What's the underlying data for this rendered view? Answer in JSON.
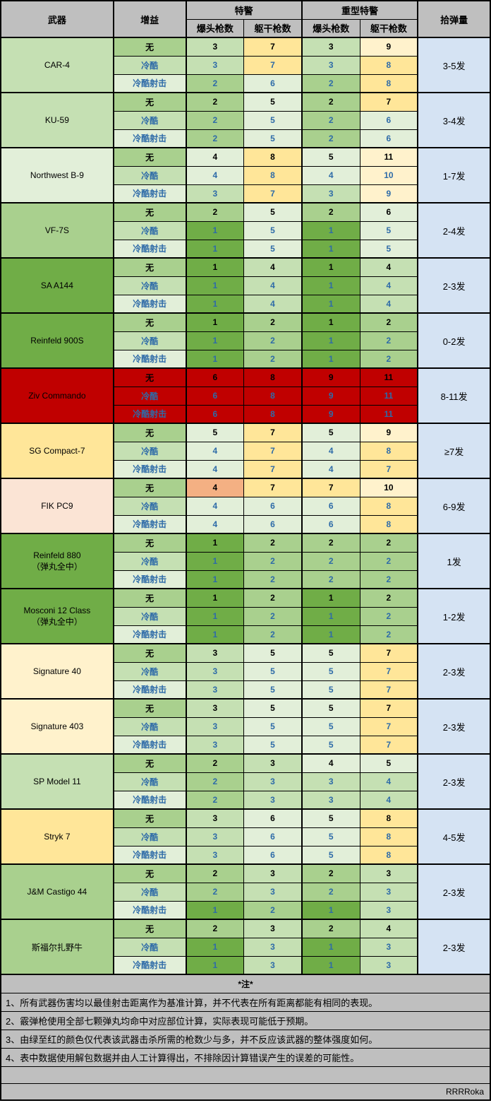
{
  "headers": {
    "weapon": "武器",
    "buff": "增益",
    "swat": "特警",
    "heavy_swat": "重型特警",
    "headshots": "爆头枪数",
    "bodyshots": "躯干枪数",
    "ammo": "拾弹量"
  },
  "buffs": {
    "none": "无",
    "cold": "冷酷",
    "coldshot": "冷酷射击"
  },
  "color_map": {
    "g1": "#70ad47",
    "g2": "#a9d08e",
    "g3": "#c5e0b3",
    "g4": "#e2efd9",
    "y1": "#ffe699",
    "y2": "#fff2cc",
    "o1": "#f4b083",
    "o2": "#fbe4d5",
    "r1": "#c00000"
  },
  "weapons": [
    {
      "name": "CAR-4",
      "ammo": "3-5发",
      "weapon_bg": "g3",
      "rows": [
        {
          "buff": "none",
          "buff_bg": "g2",
          "swat_h": "3",
          "swat_h_bg": "g3",
          "swat_b": "7",
          "swat_b_bg": "y1",
          "heavy_h": "3",
          "heavy_h_bg": "g3",
          "heavy_b": "9",
          "heavy_b_bg": "y2"
        },
        {
          "buff": "cold",
          "buff_bg": "g3",
          "swat_h": "3",
          "swat_h_bg": "g3",
          "swat_b": "7",
          "swat_b_bg": "y1",
          "heavy_h": "3",
          "heavy_h_bg": "g3",
          "heavy_b": "8",
          "heavy_b_bg": "y1"
        },
        {
          "buff": "coldshot",
          "buff_bg": "g4",
          "swat_h": "2",
          "swat_h_bg": "g2",
          "swat_b": "6",
          "swat_b_bg": "g4",
          "heavy_h": "2",
          "heavy_h_bg": "g2",
          "heavy_b": "8",
          "heavy_b_bg": "y1"
        }
      ]
    },
    {
      "name": "KU-59",
      "ammo": "3-4发",
      "weapon_bg": "g3",
      "rows": [
        {
          "buff": "none",
          "buff_bg": "g2",
          "swat_h": "2",
          "swat_h_bg": "g2",
          "swat_b": "5",
          "swat_b_bg": "g4",
          "heavy_h": "2",
          "heavy_h_bg": "g2",
          "heavy_b": "7",
          "heavy_b_bg": "y1"
        },
        {
          "buff": "cold",
          "buff_bg": "g3",
          "swat_h": "2",
          "swat_h_bg": "g2",
          "swat_b": "5",
          "swat_b_bg": "g4",
          "heavy_h": "2",
          "heavy_h_bg": "g2",
          "heavy_b": "6",
          "heavy_b_bg": "g4"
        },
        {
          "buff": "coldshot",
          "buff_bg": "g4",
          "swat_h": "2",
          "swat_h_bg": "g2",
          "swat_b": "5",
          "swat_b_bg": "g4",
          "heavy_h": "2",
          "heavy_h_bg": "g2",
          "heavy_b": "6",
          "heavy_b_bg": "g4"
        }
      ]
    },
    {
      "name": "Northwest B-9",
      "ammo": "1-7发",
      "weapon_bg": "g4",
      "rows": [
        {
          "buff": "none",
          "buff_bg": "g2",
          "swat_h": "4",
          "swat_h_bg": "g4",
          "swat_b": "8",
          "swat_b_bg": "y1",
          "heavy_h": "5",
          "heavy_h_bg": "g4",
          "heavy_b": "11",
          "heavy_b_bg": "y2"
        },
        {
          "buff": "cold",
          "buff_bg": "g3",
          "swat_h": "4",
          "swat_h_bg": "g4",
          "swat_b": "8",
          "swat_b_bg": "y1",
          "heavy_h": "4",
          "heavy_h_bg": "g4",
          "heavy_b": "10",
          "heavy_b_bg": "y2"
        },
        {
          "buff": "coldshot",
          "buff_bg": "g4",
          "swat_h": "3",
          "swat_h_bg": "g3",
          "swat_b": "7",
          "swat_b_bg": "y1",
          "heavy_h": "3",
          "heavy_h_bg": "g3",
          "heavy_b": "9",
          "heavy_b_bg": "y2"
        }
      ]
    },
    {
      "name": "VF-7S",
      "ammo": "2-4发",
      "weapon_bg": "g2",
      "rows": [
        {
          "buff": "none",
          "buff_bg": "g2",
          "swat_h": "2",
          "swat_h_bg": "g2",
          "swat_b": "5",
          "swat_b_bg": "g4",
          "heavy_h": "2",
          "heavy_h_bg": "g2",
          "heavy_b": "6",
          "heavy_b_bg": "g4"
        },
        {
          "buff": "cold",
          "buff_bg": "g3",
          "swat_h": "1",
          "swat_h_bg": "g1",
          "swat_b": "5",
          "swat_b_bg": "g4",
          "heavy_h": "1",
          "heavy_h_bg": "g1",
          "heavy_b": "5",
          "heavy_b_bg": "g4"
        },
        {
          "buff": "coldshot",
          "buff_bg": "g4",
          "swat_h": "1",
          "swat_h_bg": "g1",
          "swat_b": "5",
          "swat_b_bg": "g4",
          "heavy_h": "1",
          "heavy_h_bg": "g1",
          "heavy_b": "5",
          "heavy_b_bg": "g4"
        }
      ]
    },
    {
      "name": "SA A144",
      "ammo": "2-3发",
      "weapon_bg": "g1",
      "rows": [
        {
          "buff": "none",
          "buff_bg": "g2",
          "swat_h": "1",
          "swat_h_bg": "g1",
          "swat_b": "4",
          "swat_b_bg": "g3",
          "heavy_h": "1",
          "heavy_h_bg": "g1",
          "heavy_b": "4",
          "heavy_b_bg": "g3"
        },
        {
          "buff": "cold",
          "buff_bg": "g3",
          "swat_h": "1",
          "swat_h_bg": "g1",
          "swat_b": "4",
          "swat_b_bg": "g3",
          "heavy_h": "1",
          "heavy_h_bg": "g1",
          "heavy_b": "4",
          "heavy_b_bg": "g3"
        },
        {
          "buff": "coldshot",
          "buff_bg": "g4",
          "swat_h": "1",
          "swat_h_bg": "g1",
          "swat_b": "4",
          "swat_b_bg": "g3",
          "heavy_h": "1",
          "heavy_h_bg": "g1",
          "heavy_b": "4",
          "heavy_b_bg": "g3"
        }
      ]
    },
    {
      "name": "Reinfeld 900S",
      "ammo": "0-2发",
      "weapon_bg": "g1",
      "rows": [
        {
          "buff": "none",
          "buff_bg": "g2",
          "swat_h": "1",
          "swat_h_bg": "g1",
          "swat_b": "2",
          "swat_b_bg": "g2",
          "heavy_h": "1",
          "heavy_h_bg": "g1",
          "heavy_b": "2",
          "heavy_b_bg": "g2"
        },
        {
          "buff": "cold",
          "buff_bg": "g3",
          "swat_h": "1",
          "swat_h_bg": "g1",
          "swat_b": "2",
          "swat_b_bg": "g2",
          "heavy_h": "1",
          "heavy_h_bg": "g1",
          "heavy_b": "2",
          "heavy_b_bg": "g2"
        },
        {
          "buff": "coldshot",
          "buff_bg": "g4",
          "swat_h": "1",
          "swat_h_bg": "g1",
          "swat_b": "2",
          "swat_b_bg": "g2",
          "heavy_h": "1",
          "heavy_h_bg": "g1",
          "heavy_b": "2",
          "heavy_b_bg": "g2"
        }
      ]
    },
    {
      "name": "Ziv Commando",
      "ammo": "8-11发",
      "weapon_bg": "r1",
      "rows": [
        {
          "buff": "none",
          "buff_bg": "r1",
          "swat_h": "6",
          "swat_h_bg": "r1",
          "swat_b": "8",
          "swat_b_bg": "r1",
          "heavy_h": "9",
          "heavy_h_bg": "r1",
          "heavy_b": "11",
          "heavy_b_bg": "r1"
        },
        {
          "buff": "cold",
          "buff_bg": "r1",
          "swat_h": "6",
          "swat_h_bg": "r1",
          "swat_b": "8",
          "swat_b_bg": "r1",
          "heavy_h": "9",
          "heavy_h_bg": "r1",
          "heavy_b": "11",
          "heavy_b_bg": "r1"
        },
        {
          "buff": "coldshot",
          "buff_bg": "r1",
          "swat_h": "6",
          "swat_h_bg": "r1",
          "swat_b": "8",
          "swat_b_bg": "r1",
          "heavy_h": "9",
          "heavy_h_bg": "r1",
          "heavy_b": "11",
          "heavy_b_bg": "r1"
        }
      ]
    },
    {
      "name": "SG Compact-7",
      "ammo": "≥7发",
      "weapon_bg": "y1",
      "rows": [
        {
          "buff": "none",
          "buff_bg": "g2",
          "swat_h": "5",
          "swat_h_bg": "g4",
          "swat_b": "7",
          "swat_b_bg": "y1",
          "heavy_h": "5",
          "heavy_h_bg": "g4",
          "heavy_b": "9",
          "heavy_b_bg": "y2"
        },
        {
          "buff": "cold",
          "buff_bg": "g3",
          "swat_h": "4",
          "swat_h_bg": "g4",
          "swat_b": "7",
          "swat_b_bg": "y1",
          "heavy_h": "4",
          "heavy_h_bg": "g4",
          "heavy_b": "8",
          "heavy_b_bg": "y1"
        },
        {
          "buff": "coldshot",
          "buff_bg": "g4",
          "swat_h": "4",
          "swat_h_bg": "g4",
          "swat_b": "7",
          "swat_b_bg": "y1",
          "heavy_h": "4",
          "heavy_h_bg": "g4",
          "heavy_b": "7",
          "heavy_b_bg": "y1"
        }
      ]
    },
    {
      "name": "FIK PC9",
      "ammo": "6-9发",
      "weapon_bg": "o2",
      "rows": [
        {
          "buff": "none",
          "buff_bg": "g2",
          "swat_h": "4",
          "swat_h_bg": "o1",
          "swat_b": "7",
          "swat_b_bg": "y1",
          "heavy_h": "7",
          "heavy_h_bg": "y1",
          "heavy_b": "10",
          "heavy_b_bg": "y2"
        },
        {
          "buff": "cold",
          "buff_bg": "g3",
          "swat_h": "4",
          "swat_h_bg": "g4",
          "swat_b": "6",
          "swat_b_bg": "g4",
          "heavy_h": "6",
          "heavy_h_bg": "g4",
          "heavy_b": "8",
          "heavy_b_bg": "y1"
        },
        {
          "buff": "coldshot",
          "buff_bg": "g4",
          "swat_h": "4",
          "swat_h_bg": "g4",
          "swat_b": "6",
          "swat_b_bg": "g4",
          "heavy_h": "6",
          "heavy_h_bg": "g4",
          "heavy_b": "8",
          "heavy_b_bg": "y1"
        }
      ]
    },
    {
      "name": "Reinfeld 880\n（弹丸全中）",
      "ammo": "1发",
      "weapon_bg": "g1",
      "rows": [
        {
          "buff": "none",
          "buff_bg": "g2",
          "swat_h": "1",
          "swat_h_bg": "g1",
          "swat_b": "2",
          "swat_b_bg": "g2",
          "heavy_h": "2",
          "heavy_h_bg": "g2",
          "heavy_b": "2",
          "heavy_b_bg": "g2"
        },
        {
          "buff": "cold",
          "buff_bg": "g3",
          "swat_h": "1",
          "swat_h_bg": "g1",
          "swat_b": "2",
          "swat_b_bg": "g2",
          "heavy_h": "2",
          "heavy_h_bg": "g2",
          "heavy_b": "2",
          "heavy_b_bg": "g2"
        },
        {
          "buff": "coldshot",
          "buff_bg": "g4",
          "swat_h": "1",
          "swat_h_bg": "g1",
          "swat_b": "2",
          "swat_b_bg": "g2",
          "heavy_h": "2",
          "heavy_h_bg": "g2",
          "heavy_b": "2",
          "heavy_b_bg": "g2"
        }
      ]
    },
    {
      "name": "Mosconi 12 Class\n（弹丸全中）",
      "ammo": "1-2发",
      "weapon_bg": "g1",
      "rows": [
        {
          "buff": "none",
          "buff_bg": "g2",
          "swat_h": "1",
          "swat_h_bg": "g1",
          "swat_b": "2",
          "swat_b_bg": "g2",
          "heavy_h": "1",
          "heavy_h_bg": "g1",
          "heavy_b": "2",
          "heavy_b_bg": "g2"
        },
        {
          "buff": "cold",
          "buff_bg": "g3",
          "swat_h": "1",
          "swat_h_bg": "g1",
          "swat_b": "2",
          "swat_b_bg": "g2",
          "heavy_h": "1",
          "heavy_h_bg": "g1",
          "heavy_b": "2",
          "heavy_b_bg": "g2"
        },
        {
          "buff": "coldshot",
          "buff_bg": "g4",
          "swat_h": "1",
          "swat_h_bg": "g1",
          "swat_b": "2",
          "swat_b_bg": "g2",
          "heavy_h": "1",
          "heavy_h_bg": "g1",
          "heavy_b": "2",
          "heavy_b_bg": "g2"
        }
      ]
    },
    {
      "name": "Signature 40",
      "ammo": "2-3发",
      "weapon_bg": "y2",
      "rows": [
        {
          "buff": "none",
          "buff_bg": "g2",
          "swat_h": "3",
          "swat_h_bg": "g3",
          "swat_b": "5",
          "swat_b_bg": "g4",
          "heavy_h": "5",
          "heavy_h_bg": "g4",
          "heavy_b": "7",
          "heavy_b_bg": "y1"
        },
        {
          "buff": "cold",
          "buff_bg": "g3",
          "swat_h": "3",
          "swat_h_bg": "g3",
          "swat_b": "5",
          "swat_b_bg": "g4",
          "heavy_h": "5",
          "heavy_h_bg": "g4",
          "heavy_b": "7",
          "heavy_b_bg": "y1"
        },
        {
          "buff": "coldshot",
          "buff_bg": "g4",
          "swat_h": "3",
          "swat_h_bg": "g3",
          "swat_b": "5",
          "swat_b_bg": "g4",
          "heavy_h": "5",
          "heavy_h_bg": "g4",
          "heavy_b": "7",
          "heavy_b_bg": "y1"
        }
      ]
    },
    {
      "name": "Signature 403",
      "ammo": "2-3发",
      "weapon_bg": "y2",
      "rows": [
        {
          "buff": "none",
          "buff_bg": "g2",
          "swat_h": "3",
          "swat_h_bg": "g3",
          "swat_b": "5",
          "swat_b_bg": "g4",
          "heavy_h": "5",
          "heavy_h_bg": "g4",
          "heavy_b": "7",
          "heavy_b_bg": "y1"
        },
        {
          "buff": "cold",
          "buff_bg": "g3",
          "swat_h": "3",
          "swat_h_bg": "g3",
          "swat_b": "5",
          "swat_b_bg": "g4",
          "heavy_h": "5",
          "heavy_h_bg": "g4",
          "heavy_b": "7",
          "heavy_b_bg": "y1"
        },
        {
          "buff": "coldshot",
          "buff_bg": "g4",
          "swat_h": "3",
          "swat_h_bg": "g3",
          "swat_b": "5",
          "swat_b_bg": "g4",
          "heavy_h": "5",
          "heavy_h_bg": "g4",
          "heavy_b": "7",
          "heavy_b_bg": "y1"
        }
      ]
    },
    {
      "name": "SP Model 11",
      "ammo": "2-3发",
      "weapon_bg": "g3",
      "rows": [
        {
          "buff": "none",
          "buff_bg": "g2",
          "swat_h": "2",
          "swat_h_bg": "g2",
          "swat_b": "3",
          "swat_b_bg": "g3",
          "heavy_h": "4",
          "heavy_h_bg": "g4",
          "heavy_b": "5",
          "heavy_b_bg": "g4"
        },
        {
          "buff": "cold",
          "buff_bg": "g3",
          "swat_h": "2",
          "swat_h_bg": "g2",
          "swat_b": "3",
          "swat_b_bg": "g3",
          "heavy_h": "3",
          "heavy_h_bg": "g3",
          "heavy_b": "4",
          "heavy_b_bg": "g3"
        },
        {
          "buff": "coldshot",
          "buff_bg": "g4",
          "swat_h": "2",
          "swat_h_bg": "g2",
          "swat_b": "3",
          "swat_b_bg": "g3",
          "heavy_h": "3",
          "heavy_h_bg": "g3",
          "heavy_b": "4",
          "heavy_b_bg": "g3"
        }
      ]
    },
    {
      "name": "Stryk 7",
      "ammo": "4-5发",
      "weapon_bg": "y1",
      "rows": [
        {
          "buff": "none",
          "buff_bg": "g2",
          "swat_h": "3",
          "swat_h_bg": "g3",
          "swat_b": "6",
          "swat_b_bg": "g4",
          "heavy_h": "5",
          "heavy_h_bg": "g4",
          "heavy_b": "8",
          "heavy_b_bg": "y1"
        },
        {
          "buff": "cold",
          "buff_bg": "g3",
          "swat_h": "3",
          "swat_h_bg": "g3",
          "swat_b": "6",
          "swat_b_bg": "g4",
          "heavy_h": "5",
          "heavy_h_bg": "g4",
          "heavy_b": "8",
          "heavy_b_bg": "y1"
        },
        {
          "buff": "coldshot",
          "buff_bg": "g4",
          "swat_h": "3",
          "swat_h_bg": "g3",
          "swat_b": "6",
          "swat_b_bg": "g4",
          "heavy_h": "5",
          "heavy_h_bg": "g4",
          "heavy_b": "8",
          "heavy_b_bg": "y1"
        }
      ]
    },
    {
      "name": "J&M Castigo 44",
      "ammo": "2-3发",
      "weapon_bg": "g2",
      "rows": [
        {
          "buff": "none",
          "buff_bg": "g2",
          "swat_h": "2",
          "swat_h_bg": "g2",
          "swat_b": "3",
          "swat_b_bg": "g3",
          "heavy_h": "2",
          "heavy_h_bg": "g2",
          "heavy_b": "3",
          "heavy_b_bg": "g3"
        },
        {
          "buff": "cold",
          "buff_bg": "g3",
          "swat_h": "2",
          "swat_h_bg": "g2",
          "swat_b": "3",
          "swat_b_bg": "g3",
          "heavy_h": "2",
          "heavy_h_bg": "g2",
          "heavy_b": "3",
          "heavy_b_bg": "g3"
        },
        {
          "buff": "coldshot",
          "buff_bg": "g4",
          "swat_h": "1",
          "swat_h_bg": "g1",
          "swat_b": "2",
          "swat_b_bg": "g2",
          "heavy_h": "1",
          "heavy_h_bg": "g1",
          "heavy_b": "3",
          "heavy_b_bg": "g3"
        }
      ]
    },
    {
      "name": "斯福尔扎野牛",
      "ammo": "2-3发",
      "weapon_bg": "g2",
      "rows": [
        {
          "buff": "none",
          "buff_bg": "g2",
          "swat_h": "2",
          "swat_h_bg": "g2",
          "swat_b": "3",
          "swat_b_bg": "g3",
          "heavy_h": "2",
          "heavy_h_bg": "g2",
          "heavy_b": "4",
          "heavy_b_bg": "g3"
        },
        {
          "buff": "cold",
          "buff_bg": "g3",
          "swat_h": "1",
          "swat_h_bg": "g1",
          "swat_b": "3",
          "swat_b_bg": "g3",
          "heavy_h": "1",
          "heavy_h_bg": "g1",
          "heavy_b": "3",
          "heavy_b_bg": "g3"
        },
        {
          "buff": "coldshot",
          "buff_bg": "g4",
          "swat_h": "1",
          "swat_h_bg": "g1",
          "swat_b": "3",
          "swat_b_bg": "g3",
          "heavy_h": "1",
          "heavy_h_bg": "g1",
          "heavy_b": "3",
          "heavy_b_bg": "g3"
        }
      ]
    }
  ],
  "notes": {
    "title": "*注*",
    "lines": [
      "1、所有武器伤害均以最佳射击距离作为基准计算，并不代表在所有距离都能有相同的表现。",
      "2、霰弹枪使用全部七颗弹丸均命中对应部位计算，实际表现可能低于预期。",
      "3、由绿至红的颜色仅代表该武器击杀所需的枪数少与多，并不反应该武器的整体强度如何。",
      "4、表中数据使用解包数据并由人工计算得出，不排除因计算错误产生的误差的可能性。"
    ]
  },
  "footer": "RRRRoka"
}
